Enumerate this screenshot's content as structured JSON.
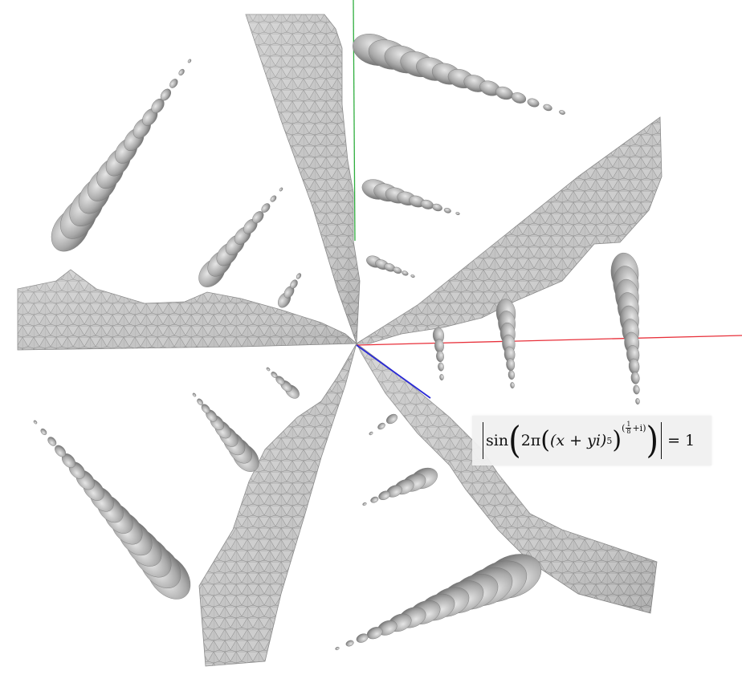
{
  "formula": {
    "func": "sin",
    "two_pi": "2π",
    "base": "(x + yi)",
    "power": "5",
    "exp_frac_num": "1",
    "exp_frac_den": "8",
    "exp_tail": "+i",
    "rhs": "= 1"
  },
  "colors": {
    "surface_fill": "#bdbdbd",
    "mesh_line": "#7a7a7a",
    "x_axis": "#e8303a",
    "y_axis": "#2fae3e",
    "z_axis": "#2a2ad6"
  },
  "icons": {
    "surface": "implicit-surface-mesh",
    "axes": "3d-axes"
  }
}
